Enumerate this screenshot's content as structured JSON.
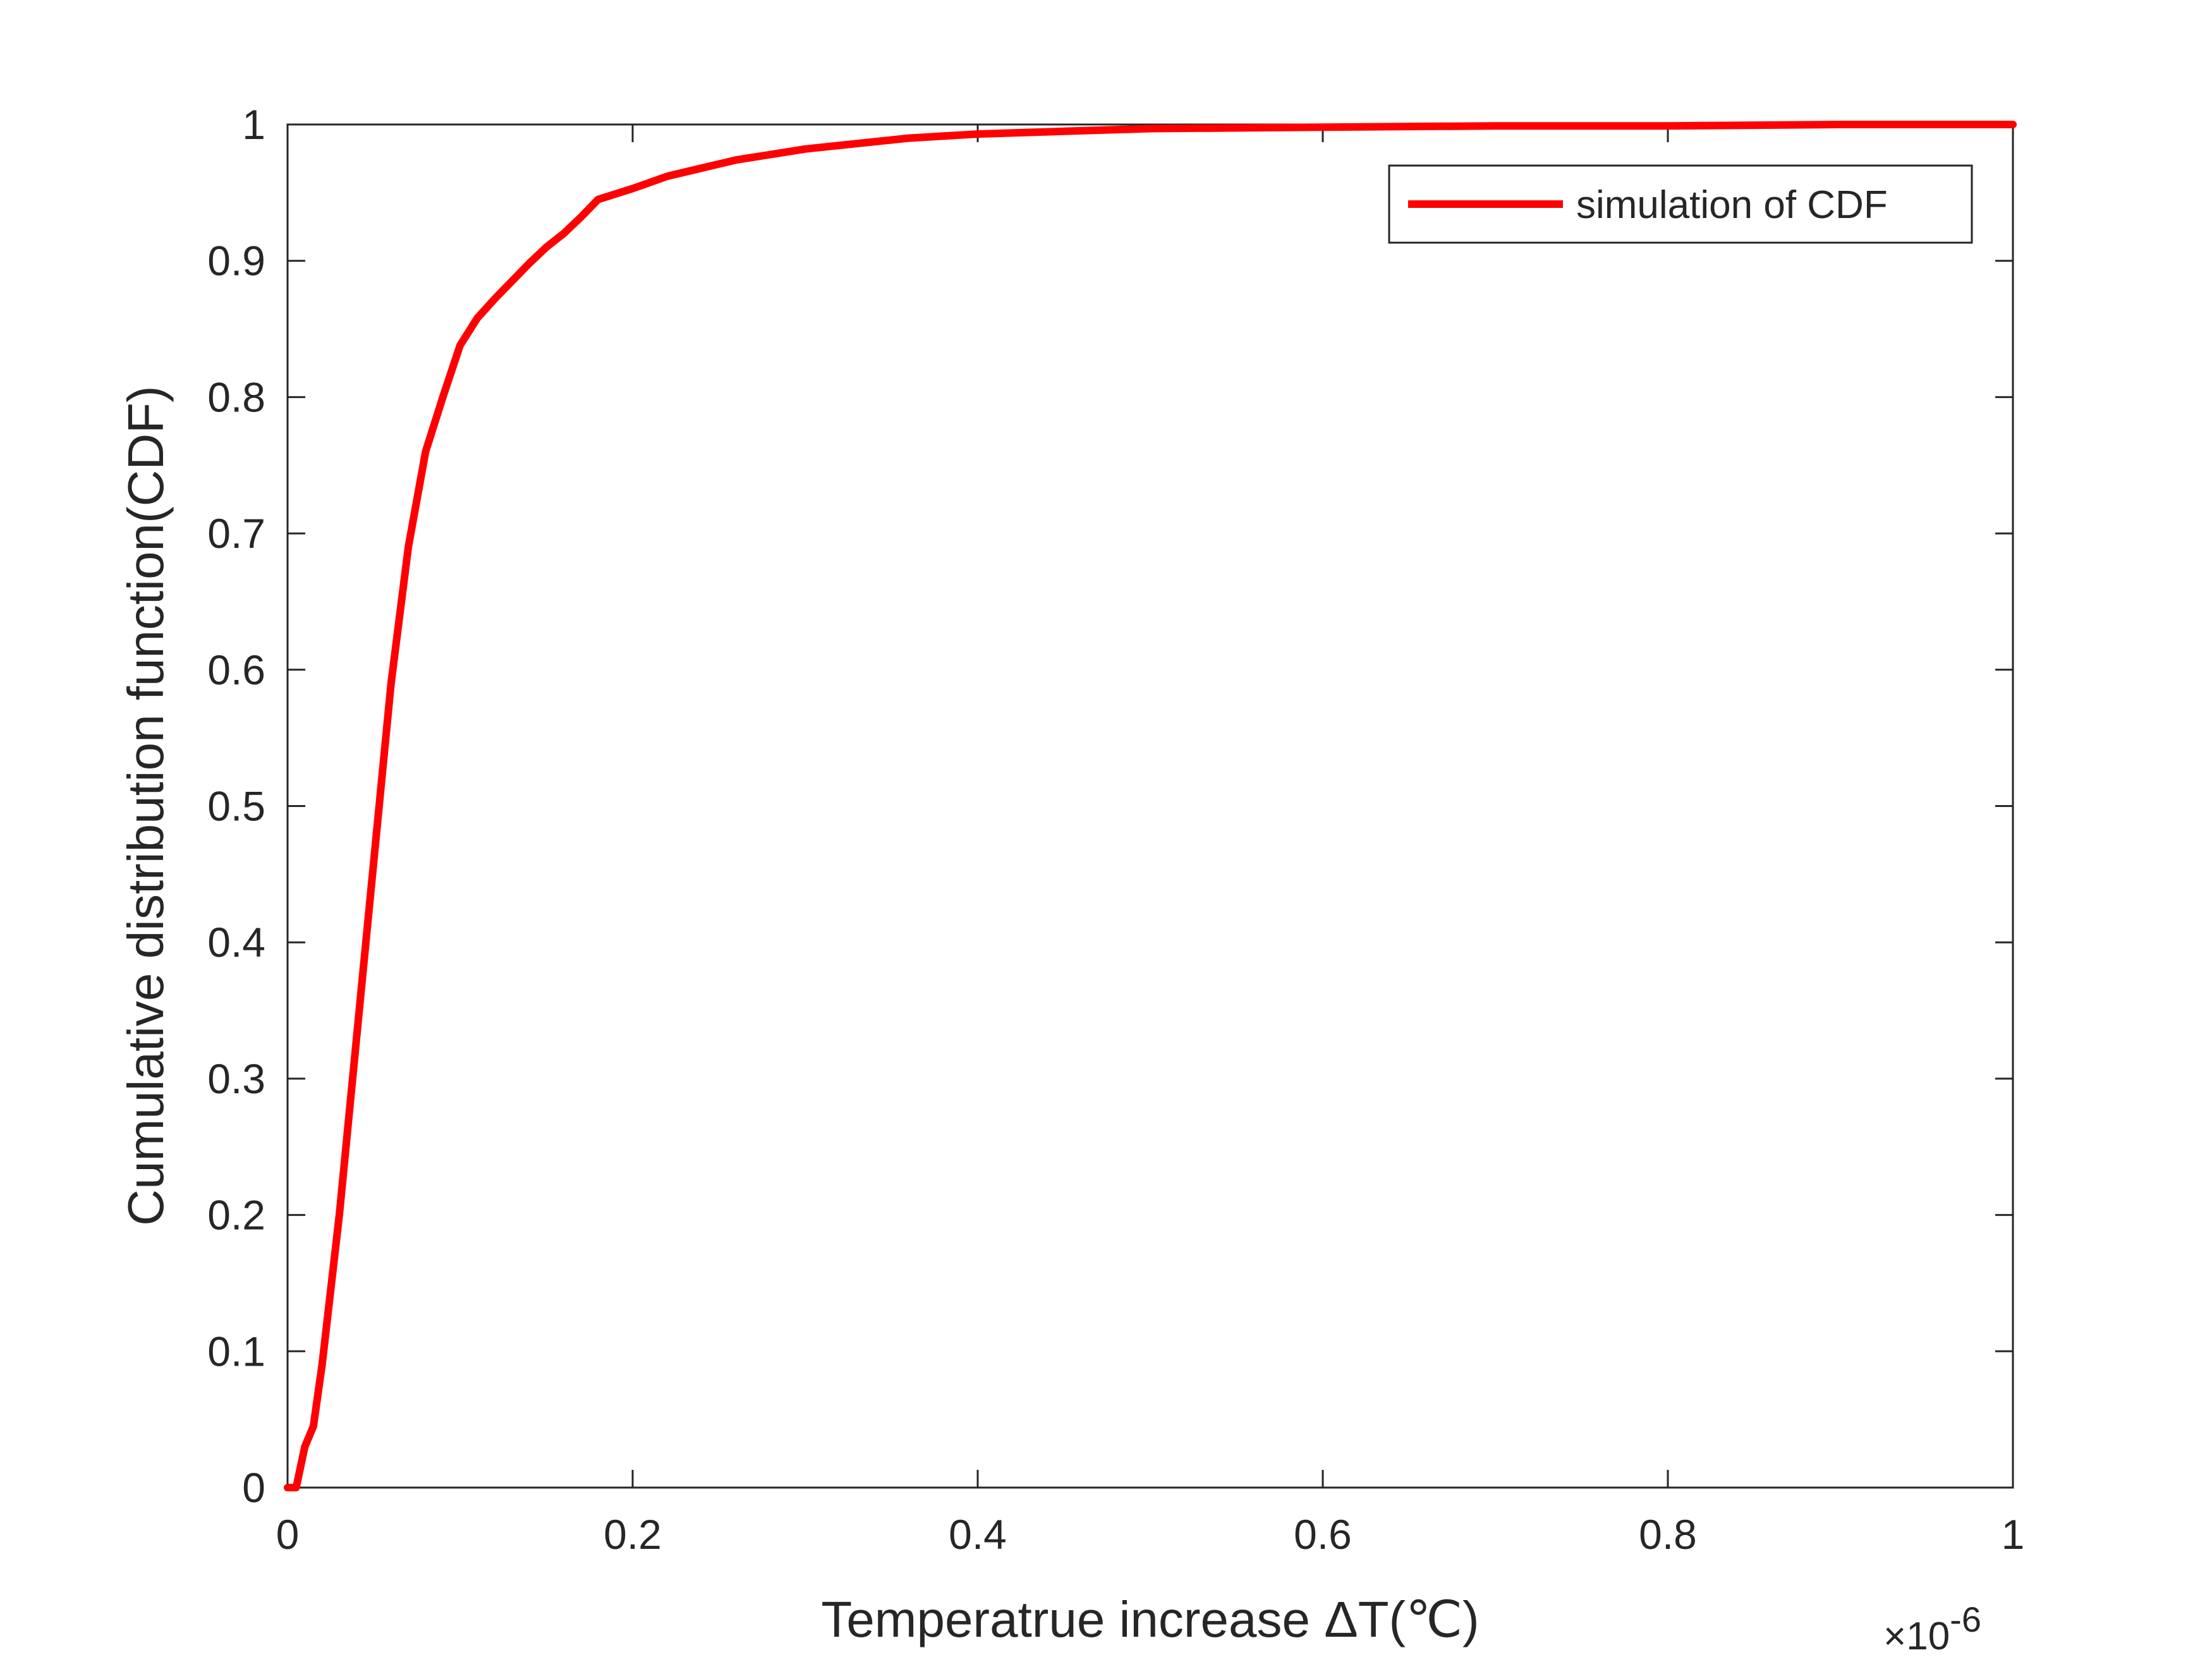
{
  "chart_data": {
    "type": "line",
    "title": "",
    "xlabel": "Temperatrue increase ΔT(℃)",
    "ylabel": "Cumulative distribution function(CDF)",
    "x_exponent_label": "×10",
    "x_exponent_power": "-6",
    "xlim": [
      0,
      1
    ],
    "ylim": [
      0,
      1
    ],
    "x_ticks": [
      0,
      0.2,
      0.4,
      0.6,
      0.8,
      1
    ],
    "x_tick_labels": [
      "0",
      "0.2",
      "0.4",
      "0.6",
      "0.8",
      "1"
    ],
    "y_ticks": [
      0,
      0.1,
      0.2,
      0.3,
      0.4,
      0.5,
      0.6,
      0.7,
      0.8,
      0.9,
      1
    ],
    "y_tick_labels": [
      "0",
      "0.1",
      "0.2",
      "0.3",
      "0.4",
      "0.5",
      "0.6",
      "0.7",
      "0.8",
      "0.9",
      "1"
    ],
    "grid": false,
    "legend_position": "top-right",
    "series": [
      {
        "name": "simulation of CDF",
        "color": "#ff0000",
        "x": [
          0,
          0.005,
          0.01,
          0.015,
          0.02,
          0.03,
          0.04,
          0.05,
          0.06,
          0.07,
          0.08,
          0.09,
          0.1,
          0.11,
          0.12,
          0.13,
          0.14,
          0.15,
          0.16,
          0.17,
          0.18,
          0.2,
          0.22,
          0.24,
          0.26,
          0.28,
          0.3,
          0.33,
          0.36,
          0.4,
          0.45,
          0.5,
          0.6,
          0.7,
          0.8,
          0.9,
          1.0
        ],
        "y": [
          0,
          0,
          0.03,
          0.045,
          0.09,
          0.2,
          0.33,
          0.46,
          0.59,
          0.69,
          0.76,
          0.8,
          0.838,
          0.858,
          0.872,
          0.885,
          0.898,
          0.91,
          0.92,
          0.932,
          0.945,
          0.953,
          0.962,
          0.968,
          0.974,
          0.978,
          0.982,
          0.986,
          0.99,
          0.993,
          0.995,
          0.997,
          0.998,
          0.999,
          0.999,
          1.0,
          1.0
        ]
      }
    ]
  }
}
